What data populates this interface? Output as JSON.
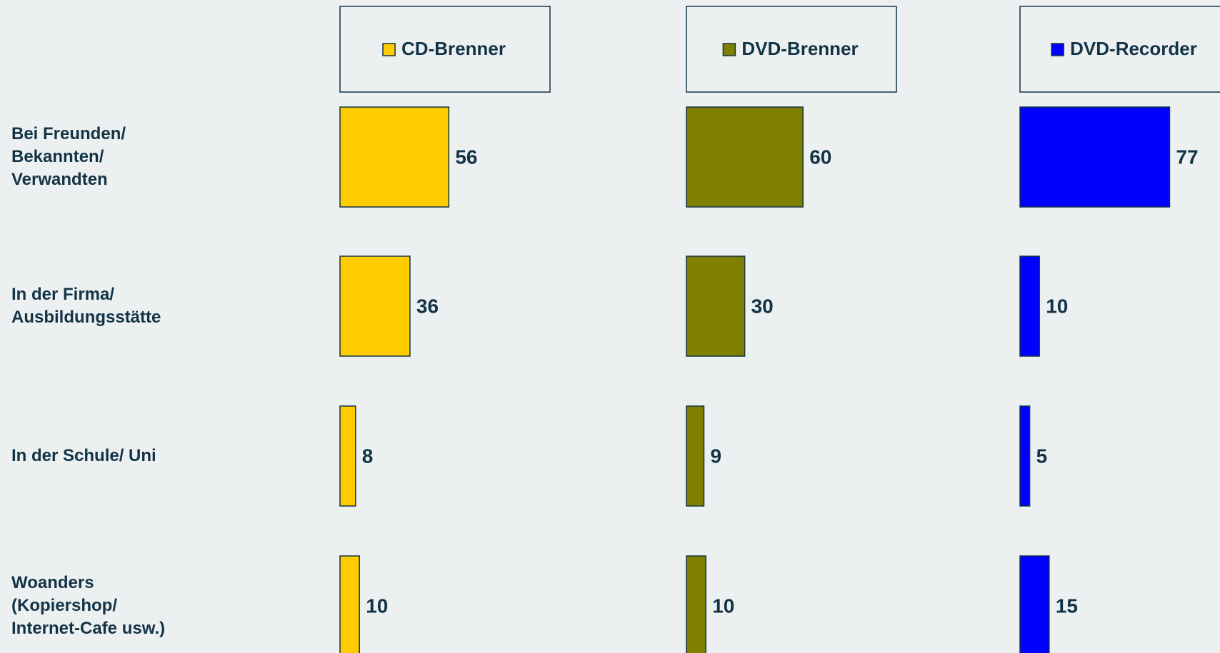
{
  "chart_data": {
    "type": "bar",
    "orientation": "horizontal",
    "categories": [
      "Bei Freunden/\nBekannten/\nVerwandten",
      "In der Firma/\nAusbildungsstätte",
      "In der Schule/ Uni",
      "Woanders\n(Kopiershop/\nInternet-Cafe usw.)"
    ],
    "series": [
      {
        "name": "CD-Brenner",
        "color": "#ffcc00",
        "values": [
          56,
          36,
          8,
          10
        ]
      },
      {
        "name": "DVD-Brenner",
        "color": "#808000",
        "values": [
          60,
          30,
          9,
          10
        ]
      },
      {
        "name": "DVD-Recorder",
        "color": "#0000ff",
        "values": [
          77,
          10,
          5,
          15
        ]
      }
    ]
  }
}
